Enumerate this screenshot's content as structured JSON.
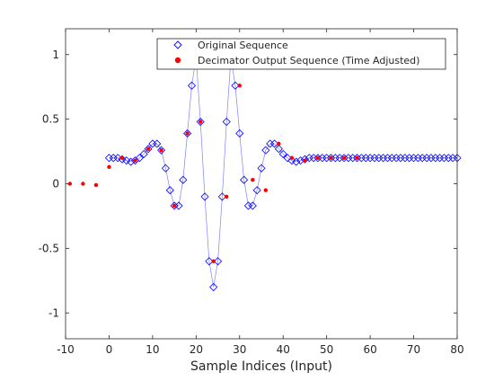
{
  "chart_data": {
    "type": "scatter",
    "xlabel": "Sample Indices (Input)",
    "ylabel": "",
    "title": "",
    "xlim": [
      -10,
      80
    ],
    "ylim": [
      -1.2,
      1.2
    ],
    "xticks": [
      -10,
      0,
      10,
      20,
      30,
      40,
      50,
      60,
      70,
      80
    ],
    "xtick_labels": [
      "-10",
      "0",
      "10",
      "20",
      "30",
      "40",
      "50",
      "60",
      "70",
      "80"
    ],
    "yticks": [
      -1,
      -0.5,
      0,
      0.5,
      1
    ],
    "ytick_labels": [
      "-1",
      "-0.5",
      "0",
      "0.5",
      "1"
    ],
    "legend_position": "top-right",
    "series": [
      {
        "name": "Original Sequence",
        "marker": "diamond",
        "color": "#0000ff",
        "line_color": "#8080ff",
        "x": [
          0,
          1,
          2,
          3,
          4,
          5,
          6,
          7,
          8,
          9,
          10,
          11,
          12,
          13,
          14,
          15,
          16,
          17,
          18,
          19,
          20,
          21,
          22,
          23,
          24,
          25,
          26,
          27,
          28,
          29,
          30,
          31,
          32,
          33,
          34,
          35,
          36,
          37,
          38,
          39,
          40,
          41,
          42,
          43,
          44,
          45,
          46,
          47,
          48,
          49,
          50,
          51,
          52,
          53,
          54,
          55,
          56,
          57,
          58,
          59,
          60,
          61,
          62,
          63,
          64,
          65,
          66,
          67,
          68,
          69,
          70,
          71,
          72,
          73,
          74,
          75,
          76,
          77,
          78,
          79,
          80
        ],
        "y": [
          0.2,
          0.2,
          0.2,
          0.19,
          0.18,
          0.17,
          0.18,
          0.2,
          0.23,
          0.27,
          0.31,
          0.31,
          0.26,
          0.12,
          -0.05,
          -0.17,
          -0.17,
          0.03,
          0.39,
          0.76,
          0.98,
          0.48,
          -0.1,
          -0.6,
          -0.8,
          -0.6,
          -0.1,
          0.48,
          0.98,
          0.76,
          0.39,
          0.03,
          -0.17,
          -0.17,
          -0.05,
          0.12,
          0.26,
          0.31,
          0.31,
          0.27,
          0.23,
          0.2,
          0.18,
          0.17,
          0.18,
          0.19,
          0.2,
          0.2,
          0.2,
          0.2,
          0.2,
          0.2,
          0.2,
          0.2,
          0.2,
          0.2,
          0.2,
          0.2,
          0.2,
          0.2,
          0.2,
          0.2,
          0.2,
          0.2,
          0.2,
          0.2,
          0.2,
          0.2,
          0.2,
          0.2,
          0.2,
          0.2,
          0.2,
          0.2,
          0.2,
          0.2,
          0.2,
          0.2,
          0.2,
          0.2,
          0.2
        ]
      },
      {
        "name": "Decimator Output Sequence (Time Adjusted)",
        "marker": "dot",
        "color": "#ff0000",
        "x": [
          -9,
          -6,
          -3,
          0,
          3,
          6,
          9,
          12,
          15,
          18,
          21,
          24,
          27,
          30,
          33,
          36,
          39,
          42,
          45,
          48,
          51,
          54,
          57
        ],
        "y": [
          0.0,
          0.0,
          -0.01,
          0.13,
          0.2,
          0.18,
          0.27,
          0.26,
          -0.17,
          0.39,
          0.48,
          -0.6,
          -0.1,
          0.76,
          0.03,
          -0.05,
          0.31,
          0.2,
          0.18,
          0.2,
          0.2,
          0.2,
          0.2
        ]
      }
    ]
  }
}
